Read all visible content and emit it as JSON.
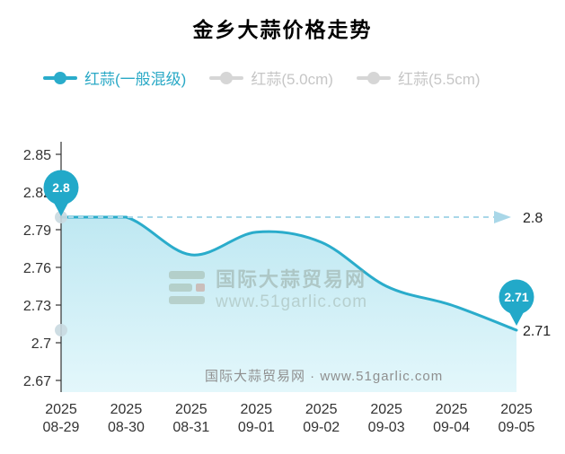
{
  "page": {
    "title": "金乡大蒜价格走势"
  },
  "legend": [
    {
      "label": "红蒜(一般混级)",
      "color": "#2aaccb",
      "active": true
    },
    {
      "label": "红蒜(5.0cm)",
      "color": "#d6d6d6",
      "active": false
    },
    {
      "label": "红蒜(5.5cm)",
      "color": "#d6d6d6",
      "active": false
    }
  ],
  "chart_data": {
    "type": "area",
    "title": "金乡大蒜价格走势",
    "x_labels": [
      {
        "year": "2025",
        "date": "08-29"
      },
      {
        "year": "2025",
        "date": "08-30"
      },
      {
        "year": "2025",
        "date": "08-31"
      },
      {
        "year": "2025",
        "date": "09-01"
      },
      {
        "year": "2025",
        "date": "09-02"
      },
      {
        "year": "2025",
        "date": "09-03"
      },
      {
        "year": "2025",
        "date": "09-04"
      },
      {
        "year": "2025",
        "date": "09-05"
      }
    ],
    "series": [
      {
        "name": "红蒜(一般混级)",
        "values": [
          2.8,
          2.8,
          2.77,
          2.788,
          2.78,
          2.745,
          2.73,
          2.71
        ]
      }
    ],
    "ylim": [
      2.67,
      2.85
    ],
    "yticks": [
      2.85,
      2.82,
      2.79,
      2.76,
      2.73,
      2.7,
      2.67
    ],
    "start_pin_label": "2.8",
    "end_pin_label": "2.71",
    "ref_line": {
      "value": 2.8,
      "label": "2.8"
    },
    "end_value_label": "2.71",
    "legend_position": "top-left",
    "grid": false,
    "colors": {
      "line": "#2aaccb",
      "area_top": "#bfe8f2",
      "area_bottom": "#e3f7fb",
      "pin": "#22a9c9",
      "dashed": "#a9d7e8",
      "axis": "#333333",
      "tick_text": "#333333",
      "value_text": "#222222",
      "dot": "#c9d9e0"
    }
  },
  "watermark": {
    "center_title": "国际大蒜贸易网",
    "center_url": "www.51garlic.com",
    "bottom": "国际大蒜贸易网 · www.51garlic.com"
  }
}
